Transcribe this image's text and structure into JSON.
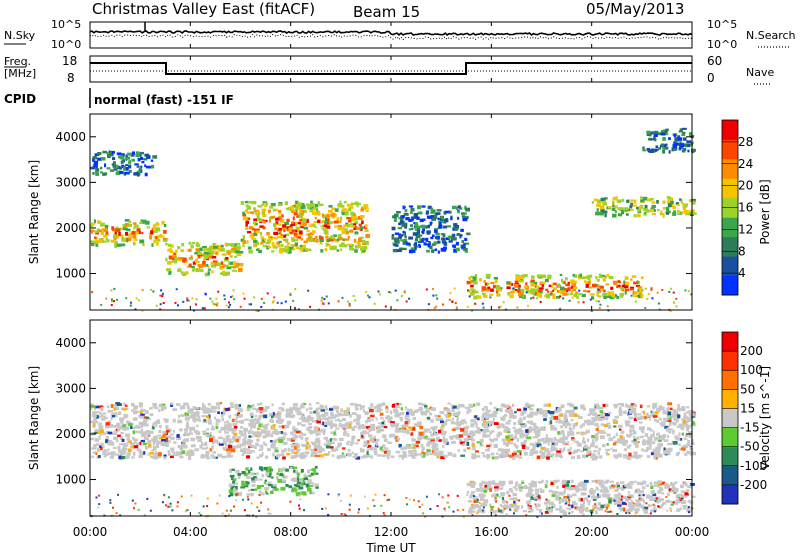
{
  "header": {
    "title": "Christmas Valley East (fitACF)",
    "beam": "Beam 15",
    "date": "05/May/2013"
  },
  "top_panels": {
    "nsky_label": "N.Sky",
    "nsearch_label": "N.Search",
    "nsky_ticks": [
      "10^5",
      "10^0"
    ],
    "nsearch_ticks": [
      "10^5",
      "10^0"
    ],
    "freq_label_1": "Freq.",
    "freq_label_2": "[MHz]",
    "freq_ticks": [
      "18",
      "8"
    ],
    "nave_label": "Nave",
    "nave_ticks": [
      "60",
      "0"
    ],
    "cpid_label": "CPID",
    "cpid_text": "normal (fast) -151 IF"
  },
  "chart_data": [
    {
      "type": "heatmap",
      "name": "power",
      "ylabel": "Slant Range [km]",
      "yticks": [
        "1000",
        "2000",
        "3000",
        "4000"
      ],
      "ylim": [
        200,
        4500
      ],
      "colorbar_label": "Power [dB]",
      "colorbar_ticks": [
        "28",
        "24",
        "20",
        "16",
        "12",
        "8",
        "4"
      ],
      "colorbar_colors": [
        "#0033ff",
        "#1a4fa0",
        "#2e7d5a",
        "#3aa84a",
        "#9cd32a",
        "#f5c400",
        "#ff8c00",
        "#ff4400",
        "#ee0000"
      ],
      "echo_bands": [
        {
          "start_h": 0.0,
          "end_h": 3.0,
          "range_km": [
            1650,
            2200
          ],
          "level": "strong"
        },
        {
          "start_h": 3.0,
          "end_h": 6.0,
          "range_km": [
            1000,
            1700
          ],
          "level": "strong"
        },
        {
          "start_h": 6.0,
          "end_h": 11.0,
          "range_km": [
            1500,
            2600
          ],
          "level": "strong"
        },
        {
          "start_h": 12.0,
          "end_h": 15.0,
          "range_km": [
            1500,
            2500
          ],
          "level": "weak"
        },
        {
          "start_h": 15.0,
          "end_h": 22.0,
          "range_km": [
            500,
            1000
          ],
          "level": "strong"
        },
        {
          "start_h": 20.0,
          "end_h": 24.0,
          "range_km": [
            2300,
            2700
          ],
          "level": "medium"
        },
        {
          "start_h": 0.0,
          "end_h": 2.5,
          "range_km": [
            3200,
            3700
          ],
          "level": "weak"
        },
        {
          "start_h": 22.0,
          "end_h": 24.0,
          "range_km": [
            3700,
            4200
          ],
          "level": "weak"
        }
      ]
    },
    {
      "type": "heatmap",
      "name": "velocity",
      "ylabel": "Slant Range [km]",
      "yticks": [
        "1000",
        "2000",
        "3000",
        "4000"
      ],
      "ylim": [
        200,
        4500
      ],
      "colorbar_label": "Velocity [m s^-1]",
      "colorbar_ticks": [
        "200",
        "100",
        "50",
        "15",
        "-15",
        "-50",
        "-100",
        "-200"
      ],
      "colorbar_colors": [
        "#2233bb",
        "#1a5a8a",
        "#2e8b57",
        "#5ccc30",
        "#c8c8c8",
        "#ffb000",
        "#ff7000",
        "#ff3000",
        "#ee0000"
      ],
      "echo_bands": [
        {
          "start_h": 0.0,
          "end_h": 24.0,
          "range_km": [
            1500,
            2700
          ],
          "level": "ground_scatter"
        },
        {
          "start_h": 5.5,
          "end_h": 9.0,
          "range_km": [
            700,
            1300
          ],
          "level": "positive"
        },
        {
          "start_h": 15.0,
          "end_h": 24.0,
          "range_km": [
            300,
            1000
          ],
          "level": "ground_scatter"
        }
      ]
    }
  ],
  "xaxis": {
    "ticks": [
      "00:00",
      "04:00",
      "08:00",
      "12:00",
      "16:00",
      "20:00",
      "00:00"
    ],
    "label": "Time UT"
  }
}
